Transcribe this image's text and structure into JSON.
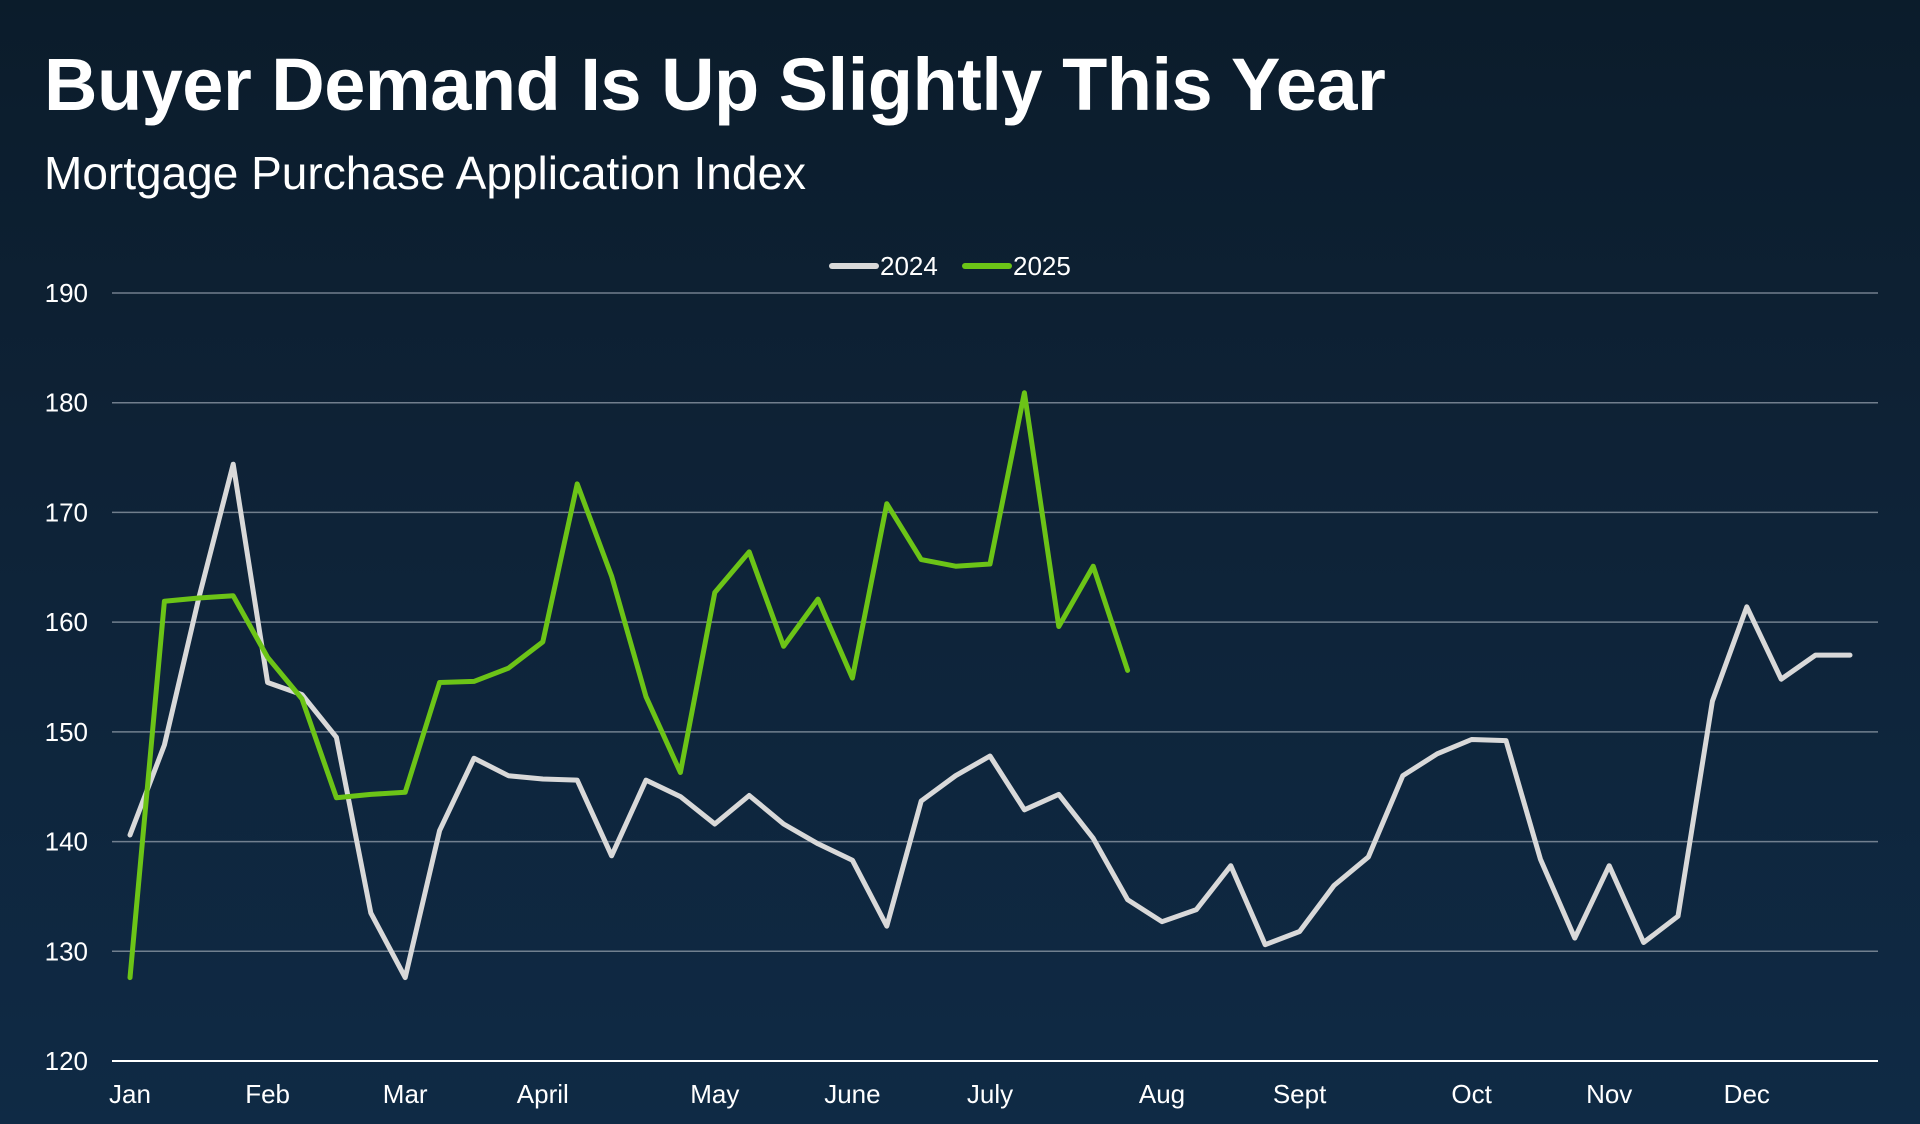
{
  "title": "Buyer Demand Is Up Slightly This Year",
  "subtitle": "Mortgage Purchase Application Index",
  "colors": {
    "background_top": "#0b1c2b",
    "background_bottom": "#0f2a45",
    "grid": "#8a96a3",
    "series_2024": "#d9d9d9",
    "series_2025": "#6cc417"
  },
  "chart_data": {
    "type": "line",
    "title": "Buyer Demand Is Up Slightly This Year",
    "subtitle": "Mortgage Purchase Application Index",
    "xlabel": "",
    "ylabel": "",
    "ylim": [
      120,
      190
    ],
    "yticks": [
      120,
      130,
      140,
      150,
      160,
      170,
      180,
      190
    ],
    "x_unit": "week",
    "xlim": [
      1,
      53
    ],
    "month_labels": [
      "Jan",
      "Feb",
      "Mar",
      "April",
      "May",
      "June",
      "July",
      "Aug",
      "Sept",
      "Oct",
      "Nov",
      "Dec"
    ],
    "month_label_week": [
      1,
      5,
      9,
      13,
      18,
      22,
      26,
      31,
      35,
      40,
      44,
      48
    ],
    "grid": true,
    "legend_position": "top-center",
    "series": [
      {
        "name": "2024",
        "color": "#d9d9d9",
        "values": [
          140.6,
          148.8,
          162.2,
          174.4,
          154.5,
          153.4,
          149.5,
          133.5,
          127.6,
          141.0,
          147.6,
          146.0,
          145.7,
          145.6,
          138.7,
          145.6,
          144.1,
          141.6,
          144.2,
          141.6,
          139.8,
          138.3,
          132.3,
          143.7,
          146.0,
          147.8,
          142.9,
          144.3,
          140.3,
          134.7,
          132.7,
          133.8,
          137.8,
          130.6,
          131.8,
          136.0,
          138.6,
          146.0,
          148.0,
          149.3,
          149.2,
          138.4,
          131.2,
          137.8,
          130.8,
          133.2,
          152.8,
          161.4,
          154.8,
          157.0,
          157.0
        ]
      },
      {
        "name": "2025",
        "color": "#6cc417",
        "values": [
          127.6,
          161.9,
          162.2,
          162.4,
          156.8,
          153.0,
          144.0,
          144.3,
          144.5,
          154.5,
          154.6,
          155.8,
          158.2,
          172.6,
          164.2,
          153.2,
          146.3,
          162.7,
          166.4,
          157.8,
          162.1,
          154.9,
          170.8,
          165.7,
          165.1,
          165.3,
          180.9,
          159.6,
          165.1,
          155.6
        ]
      }
    ]
  }
}
